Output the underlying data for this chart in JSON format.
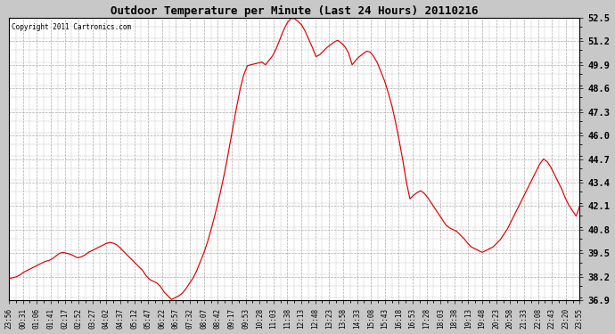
{
  "title": "Outdoor Temperature per Minute (Last 24 Hours) 20110216",
  "copyright_text": "Copyright 2011 Cartronics.com",
  "background_color": "#c8c8c8",
  "plot_bg_color": "#ffffff",
  "line_color": "#dd0000",
  "grid_color": "#aaaaaa",
  "yticks": [
    36.9,
    38.2,
    39.5,
    40.8,
    42.1,
    43.4,
    44.7,
    46.0,
    47.3,
    48.6,
    49.9,
    51.2,
    52.5
  ],
  "ylim": [
    36.9,
    52.5
  ],
  "xtick_labels": [
    "23:56",
    "00:31",
    "01:06",
    "01:41",
    "02:17",
    "02:52",
    "03:27",
    "04:02",
    "04:37",
    "05:12",
    "05:47",
    "06:22",
    "06:57",
    "07:32",
    "08:07",
    "08:42",
    "09:17",
    "09:53",
    "10:28",
    "11:03",
    "11:38",
    "12:13",
    "12:48",
    "13:23",
    "13:58",
    "14:33",
    "15:08",
    "15:43",
    "16:18",
    "16:53",
    "17:28",
    "18:03",
    "18:38",
    "19:13",
    "19:48",
    "20:23",
    "20:58",
    "21:33",
    "22:08",
    "22:43",
    "23:20",
    "23:55"
  ],
  "temperature_data": [
    38.1,
    38.15,
    38.2,
    38.3,
    38.45,
    38.55,
    38.65,
    38.75,
    38.85,
    38.95,
    39.05,
    39.1,
    39.2,
    39.35,
    39.5,
    39.55,
    39.5,
    39.45,
    39.35,
    39.25,
    39.3,
    39.4,
    39.55,
    39.65,
    39.75,
    39.85,
    39.95,
    40.05,
    40.1,
    40.05,
    39.95,
    39.75,
    39.55,
    39.35,
    39.15,
    38.95,
    38.75,
    38.55,
    38.25,
    38.05,
    37.95,
    37.85,
    37.65,
    37.35,
    37.15,
    36.95,
    37.05,
    37.15,
    37.3,
    37.55,
    37.85,
    38.15,
    38.55,
    39.05,
    39.55,
    40.15,
    40.85,
    41.6,
    42.4,
    43.3,
    44.25,
    45.35,
    46.45,
    47.55,
    48.55,
    49.35,
    49.85,
    49.9,
    49.95,
    50.0,
    50.05,
    49.9,
    50.15,
    50.4,
    50.8,
    51.3,
    51.8,
    52.2,
    52.45,
    52.45,
    52.3,
    52.1,
    51.75,
    51.3,
    50.85,
    50.35,
    50.45,
    50.65,
    50.85,
    51.0,
    51.15,
    51.25,
    51.1,
    50.9,
    50.55,
    49.9,
    50.15,
    50.35,
    50.5,
    50.65,
    50.6,
    50.35,
    50.0,
    49.5,
    49.0,
    48.35,
    47.65,
    46.75,
    45.75,
    44.65,
    43.45,
    42.5,
    42.7,
    42.85,
    42.95,
    42.8,
    42.55,
    42.25,
    41.95,
    41.65,
    41.35,
    41.05,
    40.9,
    40.8,
    40.7,
    40.5,
    40.3,
    40.05,
    39.85,
    39.75,
    39.65,
    39.55,
    39.65,
    39.75,
    39.85,
    40.05,
    40.25,
    40.55,
    40.85,
    41.25,
    41.65,
    42.05,
    42.45,
    42.85,
    43.25,
    43.65,
    44.05,
    44.45,
    44.7,
    44.55,
    44.25,
    43.85,
    43.45,
    43.05,
    42.55,
    42.15,
    41.85,
    41.55,
    42.1
  ]
}
